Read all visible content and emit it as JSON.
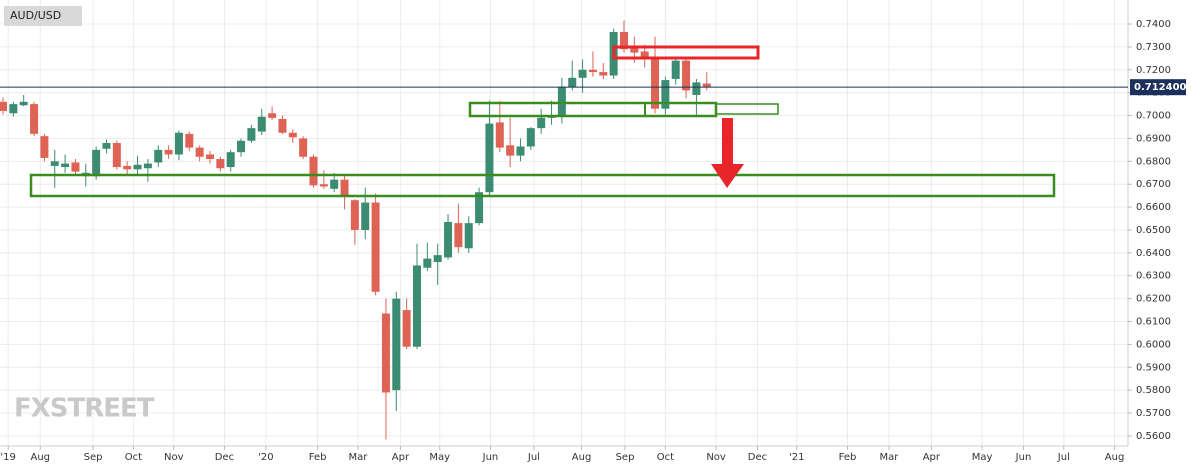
{
  "chart_data": {
    "type": "candlestick",
    "title": "AUD/USD",
    "watermark": "FXSTREET",
    "x": [
      0,
      1,
      2,
      3,
      4,
      5,
      6,
      7,
      8,
      9,
      10,
      11,
      12,
      13,
      14,
      15,
      16,
      17,
      18,
      19,
      20,
      21,
      22,
      23,
      24,
      25,
      26,
      27,
      28,
      29,
      30,
      31,
      32,
      33,
      34,
      35,
      36,
      37,
      38,
      39,
      40,
      41,
      42,
      43,
      44,
      45,
      46,
      47,
      48,
      49,
      50,
      51,
      52,
      53,
      54,
      55,
      56,
      57,
      58,
      59,
      60,
      61,
      62,
      63,
      64,
      65,
      66,
      67,
      68
    ],
    "open": [
      0.706,
      0.701,
      0.7045,
      0.705,
      0.691,
      0.678,
      0.6775,
      0.6795,
      0.6735,
      0.6735,
      0.6855,
      0.688,
      0.678,
      0.6765,
      0.677,
      0.6795,
      0.685,
      0.683,
      0.692,
      0.686,
      0.683,
      0.681,
      0.6775,
      0.684,
      0.689,
      0.693,
      0.701,
      0.6985,
      0.6925,
      0.69,
      0.682,
      0.67,
      0.668,
      0.672,
      0.663,
      0.65,
      0.662,
      0.6135,
      0.58,
      0.615,
      0.599,
      0.6335,
      0.636,
      0.638,
      0.653,
      0.642,
      0.653,
      0.6665,
      0.697,
      0.687,
      0.6825,
      0.6865,
      0.6945,
      0.699,
      0.6995,
      0.7125,
      0.7165,
      0.72,
      0.719,
      0.7175,
      0.7365,
      0.73,
      0.728,
      0.725,
      0.703,
      0.716,
      0.724,
      0.709,
      0.714
    ],
    "high": [
      0.708,
      0.706,
      0.709,
      0.706,
      0.692,
      0.685,
      0.683,
      0.681,
      0.679,
      0.6865,
      0.6895,
      0.689,
      0.68,
      0.6825,
      0.681,
      0.687,
      0.687,
      0.6935,
      0.693,
      0.687,
      0.6845,
      0.682,
      0.685,
      0.69,
      0.696,
      0.703,
      0.704,
      0.7,
      0.694,
      0.691,
      0.683,
      0.676,
      0.675,
      0.674,
      0.6635,
      0.6685,
      0.666,
      0.62,
      0.623,
      0.62,
      0.644,
      0.6445,
      0.644,
      0.657,
      0.6615,
      0.656,
      0.6685,
      0.7065,
      0.7065,
      0.699,
      0.69,
      0.695,
      0.703,
      0.7065,
      0.7165,
      0.724,
      0.7245,
      0.728,
      0.723,
      0.738,
      0.7415,
      0.7345,
      0.731,
      0.7345,
      0.717,
      0.7245,
      0.7245,
      0.716,
      0.719
    ],
    "low": [
      0.7005,
      0.6995,
      0.704,
      0.691,
      0.68,
      0.6684,
      0.675,
      0.6735,
      0.669,
      0.672,
      0.6835,
      0.6765,
      0.6745,
      0.674,
      0.671,
      0.6775,
      0.681,
      0.6805,
      0.6845,
      0.68,
      0.679,
      0.6755,
      0.6755,
      0.682,
      0.688,
      0.6915,
      0.698,
      0.692,
      0.688,
      0.681,
      0.6685,
      0.668,
      0.6665,
      0.659,
      0.6435,
      0.646,
      0.6215,
      0.5585,
      0.5709,
      0.598,
      0.598,
      0.632,
      0.626,
      0.637,
      0.64,
      0.64,
      0.652,
      0.665,
      0.684,
      0.6775,
      0.68,
      0.685,
      0.692,
      0.696,
      0.6965,
      0.711,
      0.71,
      0.717,
      0.716,
      0.716,
      0.7275,
      0.723,
      0.721,
      0.701,
      0.7005,
      0.7135,
      0.7075,
      0.7,
      0.711
    ],
    "close": [
      0.702,
      0.705,
      0.706,
      0.692,
      0.6815,
      0.68,
      0.679,
      0.6755,
      0.675,
      0.685,
      0.688,
      0.6775,
      0.6765,
      0.6785,
      0.679,
      0.685,
      0.683,
      0.6925,
      0.686,
      0.682,
      0.681,
      0.677,
      0.684,
      0.689,
      0.6945,
      0.6995,
      0.699,
      0.6925,
      0.6905,
      0.682,
      0.6695,
      0.669,
      0.672,
      0.665,
      0.65,
      0.662,
      0.623,
      0.579,
      0.62,
      0.599,
      0.6345,
      0.6375,
      0.639,
      0.6535,
      0.6425,
      0.653,
      0.6665,
      0.6965,
      0.686,
      0.6825,
      0.6865,
      0.6945,
      0.699,
      0.7,
      0.7125,
      0.7165,
      0.72,
      0.719,
      0.7175,
      0.7365,
      0.729,
      0.7275,
      0.725,
      0.703,
      0.7155,
      0.724,
      0.711,
      0.7145,
      0.7125
    ],
    "up_color": "#3c8c73",
    "down_color": "#de6354",
    "last_price": {
      "value": 0.7124,
      "label": "0.712400"
    },
    "xlim": [
      -0.29,
      108.7
    ],
    "xticks": [
      {
        "value": 0.5,
        "label": "'19"
      },
      {
        "value": 3.6,
        "label": "Aug"
      },
      {
        "value": 8.7,
        "label": "Sep"
      },
      {
        "value": 12.6,
        "label": "Oct"
      },
      {
        "value": 16.5,
        "label": "Nov"
      },
      {
        "value": 21.4,
        "label": "Dec"
      },
      {
        "value": 25.4,
        "label": "'20"
      },
      {
        "value": 30.4,
        "label": "Feb"
      },
      {
        "value": 34.3,
        "label": "Mar"
      },
      {
        "value": 38.4,
        "label": "Apr"
      },
      {
        "value": 42.2,
        "label": "May"
      },
      {
        "value": 47.1,
        "label": "Jun"
      },
      {
        "value": 51.3,
        "label": "Jul"
      },
      {
        "value": 55.9,
        "label": "Aug"
      },
      {
        "value": 60.1,
        "label": "Sep"
      },
      {
        "value": 64.0,
        "label": "Oct"
      },
      {
        "value": 68.9,
        "label": "Nov"
      },
      {
        "value": 72.9,
        "label": "Dec"
      },
      {
        "value": 76.7,
        "label": "'21"
      },
      {
        "value": 81.6,
        "label": "Feb"
      },
      {
        "value": 85.6,
        "label": "Mar"
      },
      {
        "value": 89.7,
        "label": "Apr"
      },
      {
        "value": 94.6,
        "label": "May"
      },
      {
        "value": 98.6,
        "label": "Jun"
      },
      {
        "value": 102.5,
        "label": "Jul"
      },
      {
        "value": 107.4,
        "label": "Aug"
      }
    ],
    "ylim": [
      0.5556,
      0.7505
    ],
    "yticks": [
      {
        "value": 0.74,
        "label": "0.7400"
      },
      {
        "value": 0.73,
        "label": "0.7300"
      },
      {
        "value": 0.72,
        "label": "0.7200"
      },
      {
        "value": 0.71,
        "label": "0.7100"
      },
      {
        "value": 0.7,
        "label": "0.7000"
      },
      {
        "value": 0.69,
        "label": "0.6900"
      },
      {
        "value": 0.68,
        "label": "0.6800"
      },
      {
        "value": 0.67,
        "label": "0.6700"
      },
      {
        "value": 0.66,
        "label": "0.6600"
      },
      {
        "value": 0.65,
        "label": "0.6500"
      },
      {
        "value": 0.64,
        "label": "0.6400"
      },
      {
        "value": 0.63,
        "label": "0.6300"
      },
      {
        "value": 0.62,
        "label": "0.6200"
      },
      {
        "value": 0.61,
        "label": "0.6100"
      },
      {
        "value": 0.6,
        "label": "0.6000"
      },
      {
        "value": 0.59,
        "label": "0.5900"
      },
      {
        "value": 0.58,
        "label": "0.5800"
      },
      {
        "value": 0.57,
        "label": "0.5700"
      },
      {
        "value": 0.56,
        "label": "0.5600"
      }
    ],
    "grid": true
  }
}
